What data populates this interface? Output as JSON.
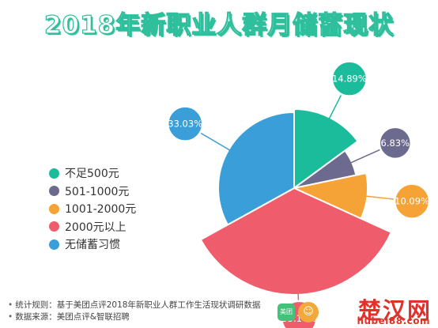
{
  "chart_data": {
    "type": "pie",
    "title": "2018年新职业人群月储蓄现状",
    "categories": [
      "不足500元",
      "501-1000元",
      "1001-2000元",
      "2000元以上",
      "无储蓄习惯"
    ],
    "values": [
      14.89,
      6.83,
      10.09,
      35.16,
      33.03
    ],
    "value_labels": [
      "14.89%",
      "6.83%",
      "10.09%",
      "35.16%",
      "33.03%"
    ],
    "colors": [
      "#1abc9c",
      "#6c6a8e",
      "#f5a236",
      "#ef5d6c",
      "#3a9ed8"
    ],
    "legend_position": "left"
  },
  "footnotes": [
    "统计规则：基于美团点评2018年新职业人群工作生活现状调研数据",
    "数据来源：美团点评&智联招聘"
  ],
  "watermark": {
    "logo_text": "美团",
    "text": "楚汉网",
    "url": "hubei88.com"
  }
}
